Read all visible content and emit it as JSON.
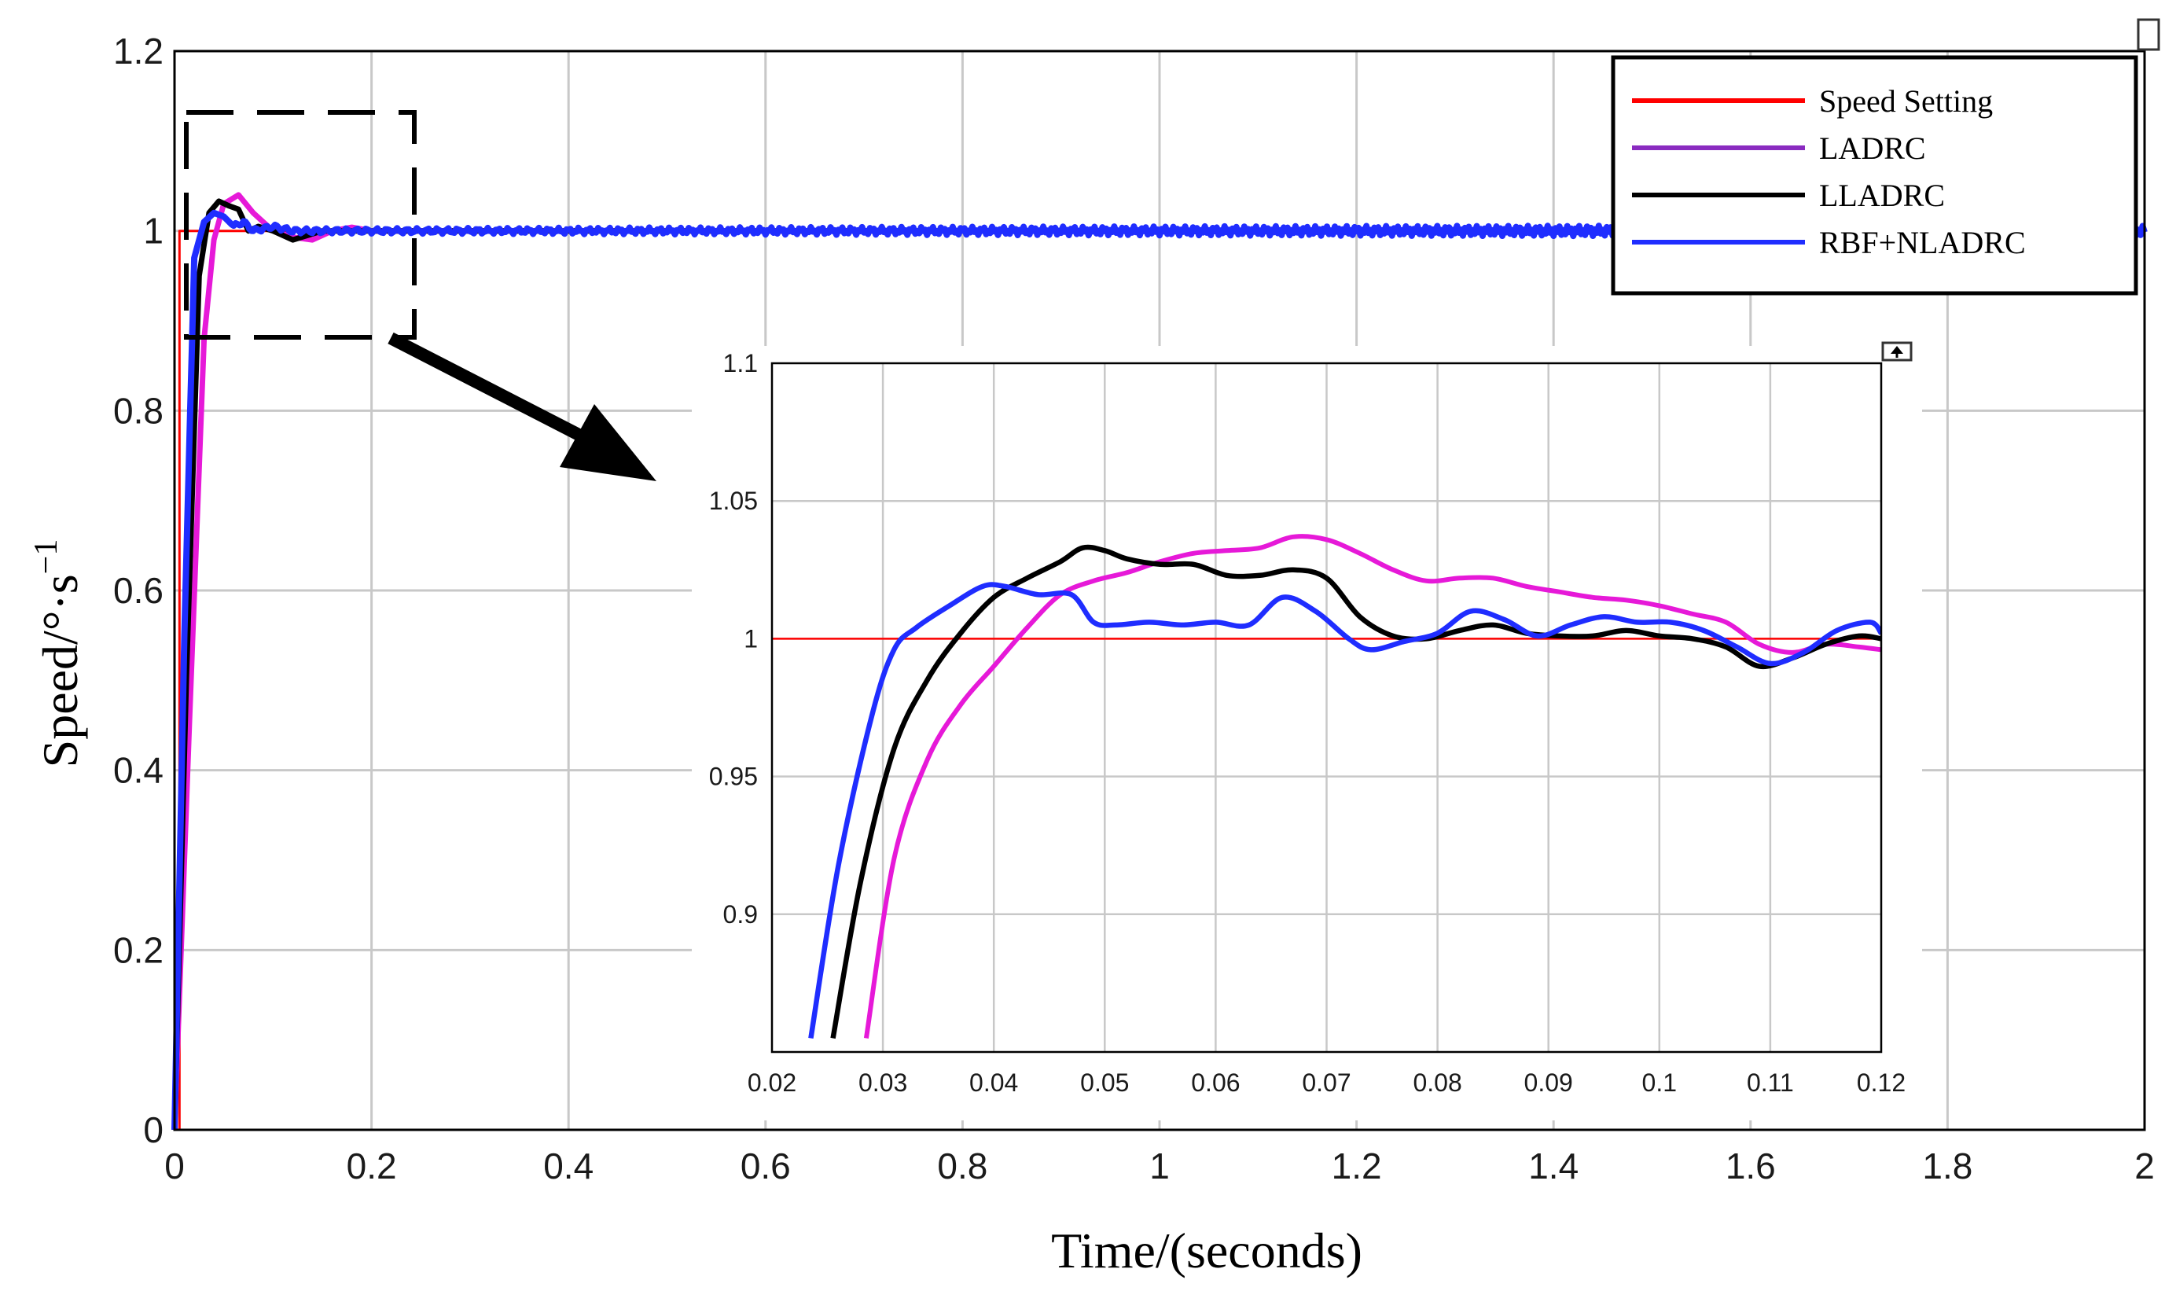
{
  "chart_data": [
    {
      "type": "line",
      "role": "main",
      "xlabel": "Time/(seconds)",
      "ylabel": "Speed/°·s",
      "ylabel_superscript": "−1",
      "xlim": [
        0,
        2
      ],
      "ylim": [
        0,
        1.2
      ],
      "grid": true,
      "x_ticks": [
        0,
        0.2,
        0.4,
        0.6,
        0.8,
        1,
        1.2,
        1.4,
        1.6,
        1.8,
        2
      ],
      "y_ticks": [
        0,
        0.2,
        0.4,
        0.6,
        0.8,
        1,
        1.2
      ],
      "x_tick_labels": [
        "0",
        "0.2",
        "0.4",
        "0.6",
        "0.8",
        "1",
        "1.2",
        "1.4",
        "1.6",
        "1.8",
        "2"
      ],
      "y_tick_labels": [
        "0",
        "0.2",
        "0.4",
        "0.6",
        "0.8",
        "1",
        "1.2"
      ],
      "legend_position": "top-right",
      "legend": [
        "Speed Setting",
        "LADRC",
        "LLADRC",
        "RBF+NLADRC"
      ],
      "series": [
        {
          "name": "Speed Setting",
          "color": "#ff0000",
          "x": [
            0,
            0.005,
            0.005,
            2
          ],
          "y": [
            0,
            0,
            1,
            1
          ]
        },
        {
          "name": "LADRC",
          "color": "#e619d8",
          "x": [
            0,
            0.015,
            0.03,
            0.04,
            0.05,
            0.065,
            0.08,
            0.1,
            0.12,
            0.14,
            0.16,
            0.18,
            0.2,
            0.3,
            0.5,
            1.0,
            1.5,
            2.0
          ],
          "y": [
            0,
            0.45,
            0.88,
            0.99,
            1.03,
            1.04,
            1.02,
            1.0,
            0.993,
            0.99,
            1.0,
            1.004,
            1.0,
            1.0,
            1.0,
            1.0,
            1.0,
            1.0
          ]
        },
        {
          "name": "LLADRC",
          "color": "#000000",
          "x": [
            0,
            0.012,
            0.025,
            0.035,
            0.045,
            0.055,
            0.065,
            0.075,
            0.085,
            0.1,
            0.12,
            0.15,
            0.2,
            0.5,
            1.0,
            1.5,
            2.0
          ],
          "y": [
            0,
            0.5,
            0.95,
            1.02,
            1.033,
            1.028,
            1.024,
            1.0,
            1.005,
            1.0,
            0.99,
            1.0,
            1.0,
            1.0,
            1.0,
            1.0,
            1.0
          ]
        },
        {
          "name": "RBF+NLADRC",
          "color": "#1f2dff",
          "x": [
            0,
            0.01,
            0.02,
            0.03,
            0.04,
            0.05,
            0.06,
            0.07,
            0.08,
            0.1,
            0.12,
            0.2,
            0.5,
            1.0,
            1.5,
            2.0
          ],
          "y": [
            0,
            0.55,
            0.97,
            1.01,
            1.02,
            1.016,
            1.005,
            1.01,
            1.0,
            1.005,
            1.0,
            1.0,
            1.0,
            1.0,
            1.0,
            1.0
          ],
          "noise_amplitude": 0.006
        }
      ]
    },
    {
      "type": "line",
      "role": "inset",
      "title": "",
      "xlim": [
        0.02,
        0.12
      ],
      "ylim": [
        0.85,
        1.1
      ],
      "grid": true,
      "x_ticks": [
        0.02,
        0.03,
        0.04,
        0.05,
        0.06,
        0.07,
        0.08,
        0.09,
        0.1,
        0.11,
        0.12
      ],
      "y_ticks": [
        0.9,
        0.95,
        1,
        1.05,
        1.1
      ],
      "x_tick_labels": [
        "0.02",
        "0.03",
        "0.04",
        "0.05",
        "0.06",
        "0.07",
        "0.08",
        "0.09",
        "0.1",
        "0.11",
        "0.12"
      ],
      "y_tick_labels": [
        "0.9",
        "0.95",
        "1",
        "1.05",
        "1.1"
      ],
      "series": [
        {
          "name": "Speed Setting",
          "color": "#ff0000",
          "x": [
            0.02,
            0.12
          ],
          "y": [
            1,
            1
          ]
        },
        {
          "name": "LADRC",
          "color": "#e619d8",
          "x": [
            0.0285,
            0.031,
            0.034,
            0.037,
            0.04,
            0.043,
            0.046,
            0.049,
            0.052,
            0.055,
            0.058,
            0.061,
            0.064,
            0.067,
            0.07,
            0.073,
            0.076,
            0.079,
            0.082,
            0.085,
            0.088,
            0.091,
            0.094,
            0.097,
            0.1,
            0.103,
            0.106,
            0.109,
            0.112,
            0.115,
            0.118,
            0.12
          ],
          "y": [
            0.855,
            0.92,
            0.956,
            0.976,
            0.99,
            1.004,
            1.016,
            1.021,
            1.024,
            1.028,
            1.031,
            1.032,
            1.033,
            1.037,
            1.036,
            1.031,
            1.025,
            1.021,
            1.022,
            1.022,
            1.019,
            1.017,
            1.015,
            1.014,
            1.012,
            1.009,
            1.006,
            0.998,
            0.995,
            0.998,
            0.997,
            0.996
          ]
        },
        {
          "name": "LLADRC",
          "color": "#000000",
          "x": [
            0.0255,
            0.028,
            0.031,
            0.034,
            0.037,
            0.04,
            0.043,
            0.046,
            0.048,
            0.05,
            0.052,
            0.055,
            0.058,
            0.061,
            0.064,
            0.067,
            0.07,
            0.073,
            0.076,
            0.079,
            0.082,
            0.085,
            0.088,
            0.091,
            0.094,
            0.097,
            0.1,
            0.103,
            0.106,
            0.109,
            0.112,
            0.115,
            0.118,
            0.12
          ],
          "y": [
            0.855,
            0.912,
            0.96,
            0.985,
            1.002,
            1.015,
            1.022,
            1.028,
            1.033,
            1.032,
            1.029,
            1.027,
            1.027,
            1.023,
            1.023,
            1.025,
            1.022,
            1.008,
            1.001,
            1.0,
            1.003,
            1.005,
            1.002,
            1.001,
            1.001,
            1.003,
            1.001,
            1.0,
            0.997,
            0.99,
            0.993,
            0.998,
            1.001,
            1.0
          ]
        },
        {
          "name": "RBF+NLADRC",
          "color": "#1f2dff",
          "x": [
            0.0235,
            0.026,
            0.029,
            0.031,
            0.033,
            0.036,
            0.039,
            0.041,
            0.044,
            0.047,
            0.049,
            0.051,
            0.054,
            0.057,
            0.06,
            0.063,
            0.066,
            0.069,
            0.072,
            0.074,
            0.077,
            0.08,
            0.083,
            0.086,
            0.089,
            0.092,
            0.095,
            0.098,
            0.101,
            0.104,
            0.107,
            0.11,
            0.113,
            0.116,
            0.119,
            0.12
          ],
          "y": [
            0.855,
            0.918,
            0.972,
            0.996,
            1.004,
            1.012,
            1.019,
            1.019,
            1.016,
            1.016,
            1.006,
            1.005,
            1.006,
            1.005,
            1.006,
            1.005,
            1.015,
            1.01,
            1.0,
            0.996,
            0.999,
            1.002,
            1.01,
            1.007,
            1.001,
            1.005,
            1.008,
            1.006,
            1.006,
            1.003,
            0.997,
            0.991,
            0.995,
            1.003,
            1.006,
            1.002
          ]
        }
      ]
    }
  ],
  "colors": {
    "grid": "#c8c8c8",
    "axis": "#000000",
    "tick_text": "#1a1a1a"
  },
  "corner_icons": {
    "main": "square-icon",
    "inset": "up-arrow-icon"
  }
}
